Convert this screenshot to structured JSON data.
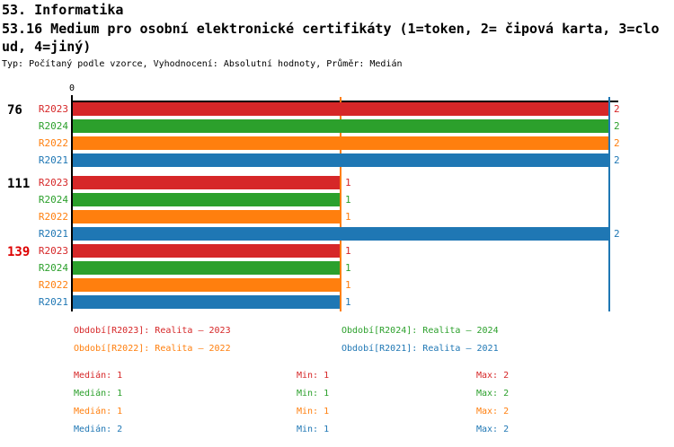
{
  "header": {
    "title": "53. Informatika",
    "question_line1": "53.16 Medium pro osobní elektronické certifikáty (1=token, 2= čipová karta, 3=clo",
    "question_line2": "ud, 4=jiný)",
    "meta": "Typ: Počítaný podle vzorce, Vyhodnocení: Absolutní hodnoty, Průměr: Medián"
  },
  "chart_data": {
    "type": "bar",
    "orientation": "horizontal",
    "title": "53.16 Medium pro osobní elektronické certifikáty (1=token, 2= čipová karta, 3=cloud, 4=jiný)",
    "xlabel": "",
    "ylabel": "",
    "xlim": [
      0,
      2.05
    ],
    "axis_ticks": {
      "zero": "0"
    },
    "grid": false,
    "series_colors": {
      "R2023": "#d62728",
      "R2024": "#2ca02c",
      "R2022": "#ff7f0e",
      "R2021": "#1f77b4"
    },
    "groups": [
      {
        "label": "76",
        "label_color": "#000000",
        "rows": [
          {
            "series": "R2023",
            "value": 2
          },
          {
            "series": "R2024",
            "value": 2
          },
          {
            "series": "R2022",
            "value": 2
          },
          {
            "series": "R2021",
            "value": 2
          }
        ]
      },
      {
        "label": "111",
        "label_color": "#000000",
        "rows": [
          {
            "series": "R2023",
            "value": 1
          },
          {
            "series": "R2024",
            "value": 1
          },
          {
            "series": "R2022",
            "value": 1
          },
          {
            "series": "R2021",
            "value": 2
          }
        ]
      },
      {
        "label": "139",
        "label_color": "#dd0000",
        "rows": [
          {
            "series": "R2023",
            "value": 1
          },
          {
            "series": "R2024",
            "value": 1
          },
          {
            "series": "R2022",
            "value": 1
          },
          {
            "series": "R2021",
            "value": 1
          }
        ]
      }
    ],
    "median_lines": [
      {
        "value": 1,
        "color": "#ff7f0e"
      },
      {
        "value": 2,
        "color": "#1f77b4"
      }
    ]
  },
  "legend": [
    {
      "label": "Období[R2023]: Realita – 2023",
      "color": "#d62728"
    },
    {
      "label": "Období[R2024]: Realita – 2024",
      "color": "#2ca02c"
    },
    {
      "label": "Období[R2022]: Realita – 2022",
      "color": "#ff7f0e"
    },
    {
      "label": "Období[R2021]: Realita – 2021",
      "color": "#1f77b4"
    }
  ],
  "stats": [
    {
      "median": "Medián: 1",
      "min": "Min: 1",
      "max": "Max: 2",
      "color": "#d62728"
    },
    {
      "median": "Medián: 1",
      "min": "Min: 1",
      "max": "Max: 2",
      "color": "#2ca02c"
    },
    {
      "median": "Medián: 1",
      "min": "Min: 1",
      "max": "Max: 2",
      "color": "#ff7f0e"
    },
    {
      "median": "Medián: 2",
      "min": "Min: 1",
      "max": "Max: 2",
      "color": "#1f77b4"
    }
  ]
}
